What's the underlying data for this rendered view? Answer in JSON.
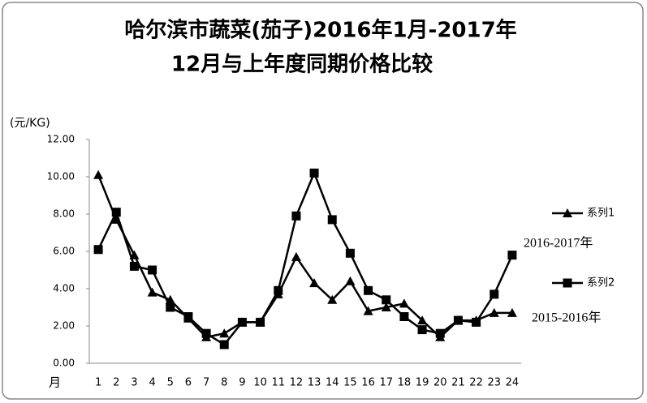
{
  "chart_data": {
    "type": "line",
    "title_lines": [
      "哈尔滨市蔬菜(茄子)2016年1月-2017年",
      "12月与上年度同期价格比较"
    ],
    "y_label": "(元/KG)",
    "x_label": "月",
    "categories": [
      "1",
      "2",
      "3",
      "4",
      "5",
      "6",
      "7",
      "8",
      "9",
      "10",
      "11",
      "12",
      "13",
      "14",
      "15",
      "16",
      "17",
      "18",
      "19",
      "20",
      "21",
      "22",
      "23",
      "24"
    ],
    "series": [
      {
        "name": "系列1",
        "color": "#000000",
        "marker": "triangle",
        "values": [
          10.1,
          7.7,
          5.8,
          3.8,
          3.4,
          2.4,
          1.4,
          1.6,
          2.2,
          2.2,
          3.7,
          5.7,
          4.3,
          3.4,
          4.4,
          2.8,
          3.0,
          3.2,
          2.3,
          1.4,
          2.3,
          2.3,
          2.7,
          2.7
        ]
      },
      {
        "name": "系列2",
        "color": "#000000",
        "marker": "square",
        "values": [
          6.1,
          8.1,
          5.2,
          5.0,
          3.0,
          2.5,
          1.6,
          1.0,
          2.2,
          2.2,
          3.9,
          7.9,
          10.2,
          7.7,
          5.9,
          3.9,
          3.4,
          2.5,
          1.8,
          1.6,
          2.3,
          2.2,
          3.7,
          5.8
        ]
      }
    ],
    "annotations": [
      "2016-2017年",
      "2015-2016年"
    ],
    "ylim": [
      0,
      12
    ],
    "yticks": [
      {
        "value": 0,
        "label": "0.00"
      },
      {
        "value": 2,
        "label": "2.00"
      },
      {
        "value": 4,
        "label": "4.00"
      },
      {
        "value": 6,
        "label": "6.00"
      },
      {
        "value": 8,
        "label": "8.00"
      },
      {
        "value": 10,
        "label": "10.00"
      },
      {
        "value": 12,
        "label": "12.00"
      }
    ],
    "grid": false,
    "legend": "right"
  }
}
